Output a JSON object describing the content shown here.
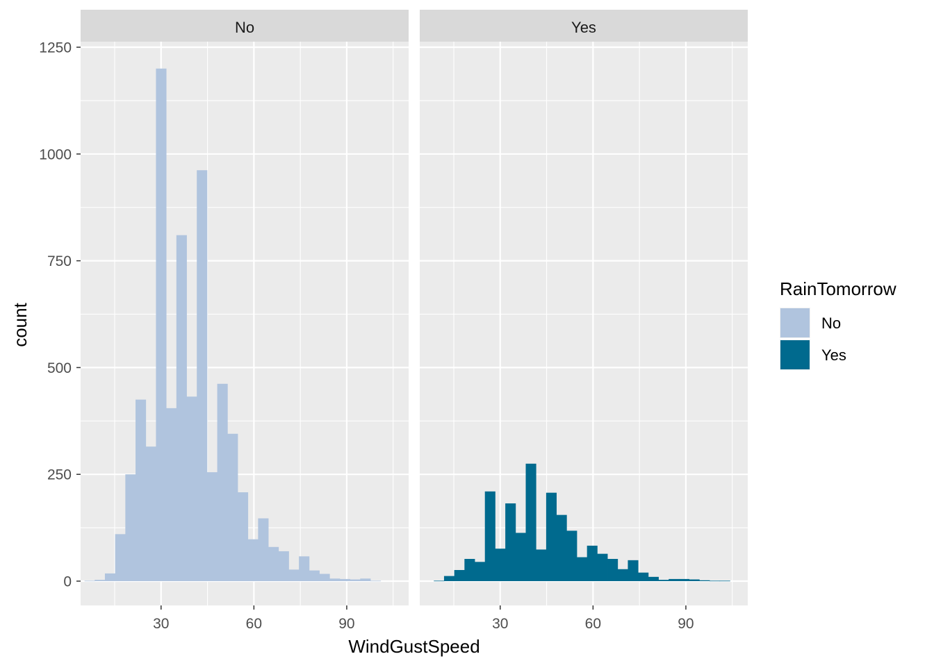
{
  "chart_data": {
    "type": "bar",
    "subtype": "faceted-histogram",
    "xlabel": "WindGustSpeed",
    "ylabel": "count",
    "x_ticks": [
      30,
      60,
      90
    ],
    "y_ticks": [
      0,
      250,
      500,
      750,
      1000,
      1250
    ],
    "xlim": [
      4,
      110
    ],
    "ylim": [
      0,
      1280
    ],
    "bin_width": 3.3,
    "grid": true,
    "legend": {
      "title": "RainTomorrow",
      "position": "right",
      "items": [
        {
          "label": "No",
          "color": "#B0C4DE"
        },
        {
          "label": "Yes",
          "color": "#006A8E"
        }
      ]
    },
    "panels": [
      {
        "strip": "No",
        "color": "#B0C4DE",
        "bins": [
          {
            "x": 6.9,
            "count": 1
          },
          {
            "x": 10.2,
            "count": 3
          },
          {
            "x": 13.5,
            "count": 18
          },
          {
            "x": 16.8,
            "count": 110
          },
          {
            "x": 20.1,
            "count": 250
          },
          {
            "x": 23.4,
            "count": 425
          },
          {
            "x": 26.7,
            "count": 315
          },
          {
            "x": 30.0,
            "count": 1200
          },
          {
            "x": 33.3,
            "count": 405
          },
          {
            "x": 36.6,
            "count": 810
          },
          {
            "x": 39.9,
            "count": 432
          },
          {
            "x": 43.2,
            "count": 962
          },
          {
            "x": 46.5,
            "count": 255
          },
          {
            "x": 49.8,
            "count": 462
          },
          {
            "x": 53.1,
            "count": 345
          },
          {
            "x": 56.4,
            "count": 208
          },
          {
            "x": 59.7,
            "count": 98
          },
          {
            "x": 63.0,
            "count": 147
          },
          {
            "x": 66.3,
            "count": 80
          },
          {
            "x": 69.6,
            "count": 70
          },
          {
            "x": 72.9,
            "count": 27
          },
          {
            "x": 76.2,
            "count": 58
          },
          {
            "x": 79.5,
            "count": 25
          },
          {
            "x": 82.8,
            "count": 17
          },
          {
            "x": 86.1,
            "count": 6
          },
          {
            "x": 89.4,
            "count": 5
          },
          {
            "x": 92.7,
            "count": 4
          },
          {
            "x": 96.0,
            "count": 6
          },
          {
            "x": 99.3,
            "count": 1
          },
          {
            "x": 102.6,
            "count": 0
          }
        ]
      },
      {
        "strip": "Yes",
        "color": "#006A8E",
        "bins": [
          {
            "x": 10.2,
            "count": 1
          },
          {
            "x": 13.5,
            "count": 12
          },
          {
            "x": 16.8,
            "count": 26
          },
          {
            "x": 20.1,
            "count": 52
          },
          {
            "x": 23.4,
            "count": 45
          },
          {
            "x": 26.7,
            "count": 210
          },
          {
            "x": 30.0,
            "count": 76
          },
          {
            "x": 33.3,
            "count": 182
          },
          {
            "x": 36.6,
            "count": 113
          },
          {
            "x": 39.9,
            "count": 275
          },
          {
            "x": 43.2,
            "count": 74
          },
          {
            "x": 46.5,
            "count": 207
          },
          {
            "x": 49.8,
            "count": 155
          },
          {
            "x": 53.1,
            "count": 118
          },
          {
            "x": 56.4,
            "count": 56
          },
          {
            "x": 59.7,
            "count": 83
          },
          {
            "x": 63.0,
            "count": 64
          },
          {
            "x": 66.3,
            "count": 52
          },
          {
            "x": 69.6,
            "count": 28
          },
          {
            "x": 72.9,
            "count": 49
          },
          {
            "x": 76.2,
            "count": 20
          },
          {
            "x": 79.5,
            "count": 10
          },
          {
            "x": 82.8,
            "count": 3
          },
          {
            "x": 86.1,
            "count": 5
          },
          {
            "x": 89.4,
            "count": 5
          },
          {
            "x": 92.7,
            "count": 4
          },
          {
            "x": 96.0,
            "count": 2
          },
          {
            "x": 99.3,
            "count": 1
          },
          {
            "x": 102.6,
            "count": 1
          }
        ]
      }
    ]
  }
}
